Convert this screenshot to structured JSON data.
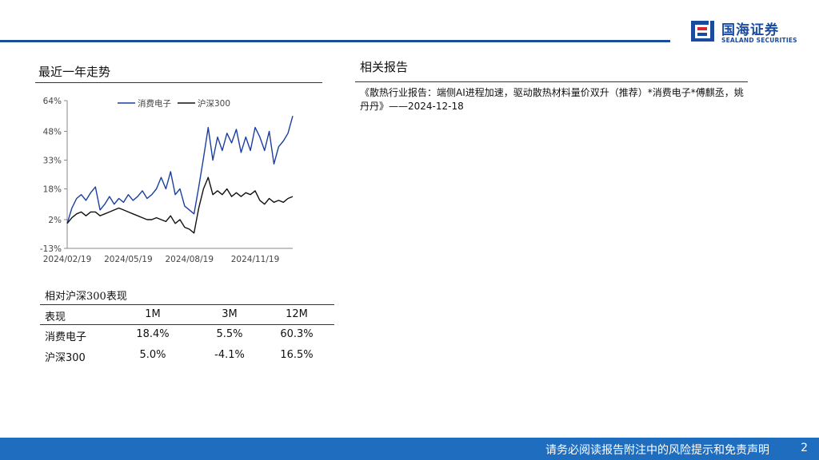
{
  "logo": {
    "name_cn": "国海证券",
    "name_en": "SEALAND SECURITIES"
  },
  "left": {
    "trend_title": "最近一年走势"
  },
  "right": {
    "reports_title": "相关报告",
    "report_text": "《散热行业报告：端侧AI进程加速，驱动散热材料量价双升（推荐）*消费电子*傅麒丞，姚丹丹》——2024-12-18"
  },
  "chart_data": {
    "type": "line",
    "y_ticks": [
      "64%",
      "48%",
      "33%",
      "18%",
      "2%",
      "-13%"
    ],
    "y_tick_values": [
      64,
      48,
      33,
      18,
      2,
      -13
    ],
    "ylim": [
      -13,
      64
    ],
    "x_tick_labels": [
      "2024/02/19",
      "2024/05/19",
      "2024/08/19",
      "2024/11/19"
    ],
    "x_tick_index": [
      0,
      13,
      26,
      40
    ],
    "legend_position": "top",
    "series": [
      {
        "name": "消费电子",
        "color": "#1a3f9e",
        "values": [
          0,
          8,
          13,
          15,
          12,
          16,
          19,
          7,
          10,
          14,
          10,
          13,
          11,
          15,
          12,
          14,
          17,
          13,
          15,
          18,
          24,
          18,
          27,
          15,
          18,
          9,
          7,
          5,
          19,
          34,
          50,
          33,
          45,
          38,
          47,
          42,
          49,
          37,
          45,
          38,
          50,
          45,
          38,
          48,
          31,
          40,
          43,
          47,
          56
        ]
      },
      {
        "name": "沪深300",
        "color": "#111111",
        "values": [
          0,
          3,
          5,
          6,
          4,
          6,
          6,
          4,
          5,
          6,
          7,
          8,
          7,
          6,
          5,
          4,
          3,
          2,
          2,
          3,
          2,
          1,
          4,
          0,
          2,
          -2,
          -3,
          -5,
          8,
          18,
          24,
          15,
          17,
          15,
          18,
          14,
          16,
          14,
          16,
          15,
          17,
          12,
          10,
          13,
          11,
          12,
          11,
          13,
          14
        ]
      }
    ]
  },
  "perf": {
    "title": "相对沪深300表现",
    "headers": [
      "表现",
      "1M",
      "3M",
      "12M"
    ],
    "rows": [
      [
        "消费电子",
        "18.4%",
        "5.5%",
        "60.3%"
      ],
      [
        "沪深300",
        "5.0%",
        "-4.1%",
        "16.5%"
      ]
    ]
  },
  "footer": {
    "disclaimer": "请务必阅读报告附注中的风险提示和免责声明",
    "page": "2"
  },
  "colors": {
    "brand_blue": "#1a4b9e",
    "footer_blue": "#1e6dbf",
    "logo_red": "#d9272e"
  }
}
